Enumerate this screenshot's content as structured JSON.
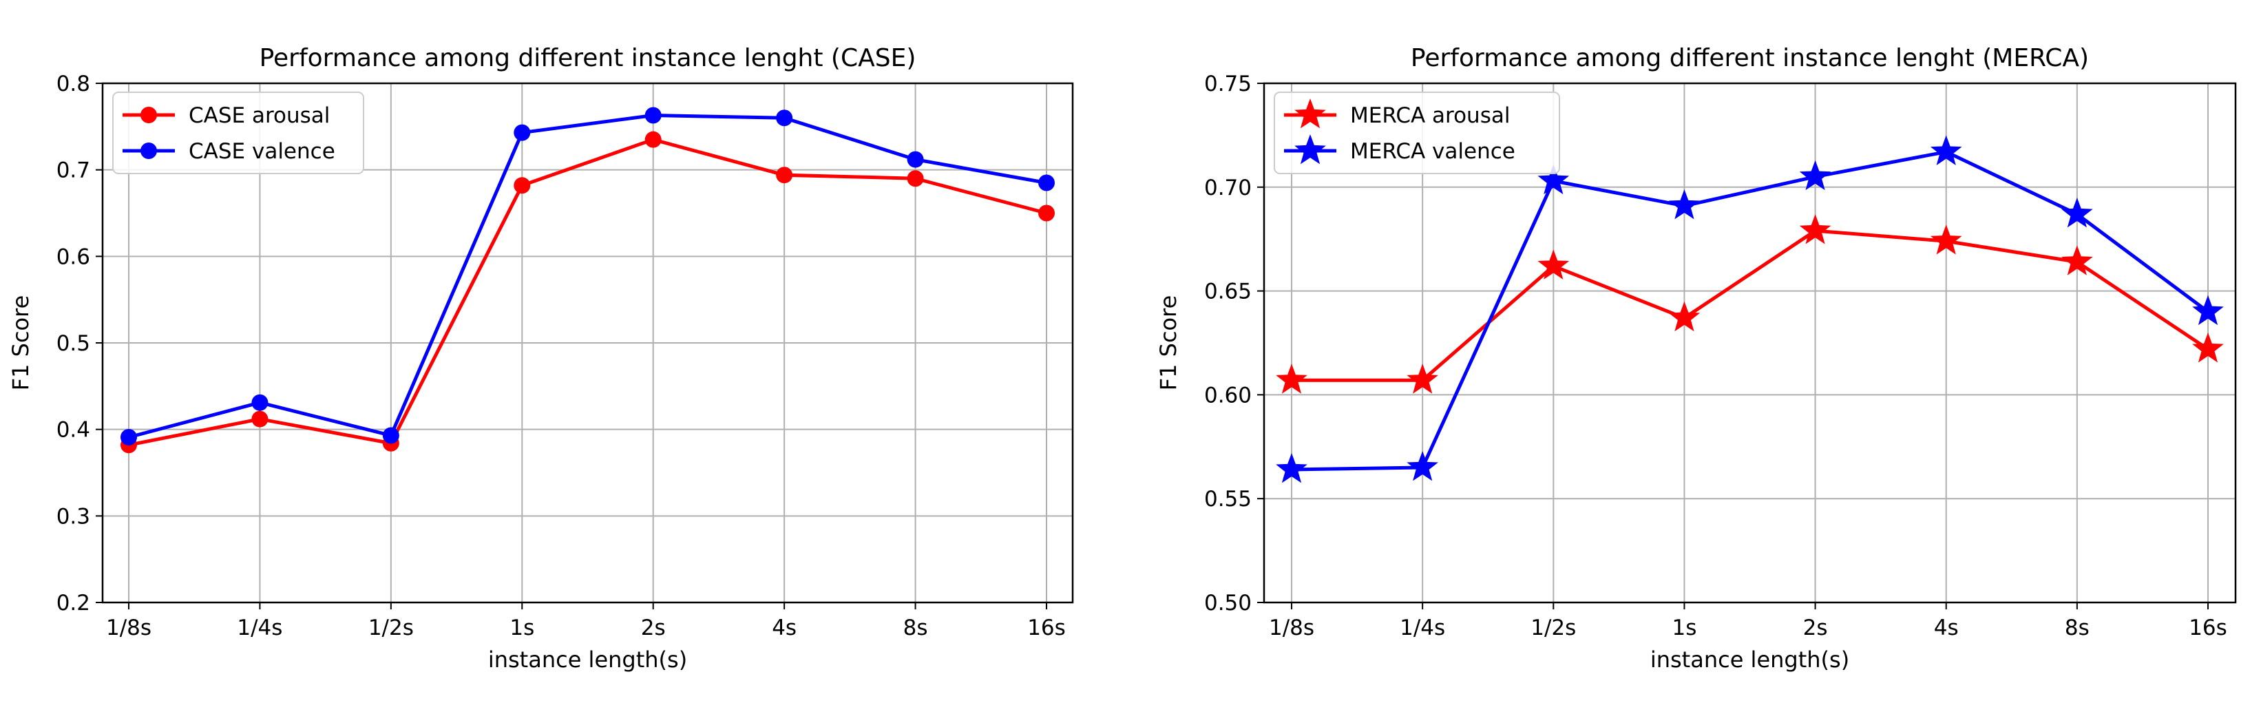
{
  "chart_data": [
    {
      "type": "line",
      "title": "Performance among different instance lenght (CASE)",
      "xlabel": "instance length(s)",
      "ylabel": "F1 Score",
      "categories": [
        "1/8s",
        "1/4s",
        "1/2s",
        "1s",
        "2s",
        "4s",
        "8s",
        "16s"
      ],
      "ylim": [
        0.2,
        0.8
      ],
      "yticks": [
        0.2,
        0.3,
        0.4,
        0.5,
        0.6,
        0.7,
        0.8
      ],
      "ytick_labels": [
        "0.2",
        "0.3",
        "0.4",
        "0.5",
        "0.6",
        "0.7",
        "0.8"
      ],
      "grid": true,
      "legend_position": "top-left",
      "series": [
        {
          "name": "CASE arousal",
          "color": "#ff0000",
          "marker": "circle",
          "values": [
            0.382,
            0.412,
            0.384,
            0.682,
            0.735,
            0.694,
            0.69,
            0.65
          ]
        },
        {
          "name": "CASE valence",
          "color": "#0000ff",
          "marker": "circle",
          "values": [
            0.391,
            0.431,
            0.393,
            0.743,
            0.763,
            0.76,
            0.712,
            0.685
          ]
        }
      ]
    },
    {
      "type": "line",
      "title": "Performance among different instance lenght (MERCA)",
      "xlabel": "instance length(s)",
      "ylabel": "F1 Score",
      "categories": [
        "1/8s",
        "1/4s",
        "1/2s",
        "1s",
        "2s",
        "4s",
        "8s",
        "16s"
      ],
      "ylim": [
        0.5,
        0.75
      ],
      "yticks": [
        0.5,
        0.55,
        0.6,
        0.65,
        0.7,
        0.75
      ],
      "ytick_labels": [
        "0.50",
        "0.55",
        "0.60",
        "0.65",
        "0.70",
        "0.75"
      ],
      "grid": true,
      "legend_position": "top-left",
      "series": [
        {
          "name": "MERCA arousal",
          "color": "#ff0000",
          "marker": "star",
          "values": [
            0.607,
            0.607,
            0.662,
            0.637,
            0.679,
            0.674,
            0.664,
            0.622
          ]
        },
        {
          "name": "MERCA valence",
          "color": "#0000ff",
          "marker": "star",
          "values": [
            0.564,
            0.565,
            0.703,
            0.691,
            0.705,
            0.717,
            0.687,
            0.64
          ]
        }
      ]
    }
  ]
}
